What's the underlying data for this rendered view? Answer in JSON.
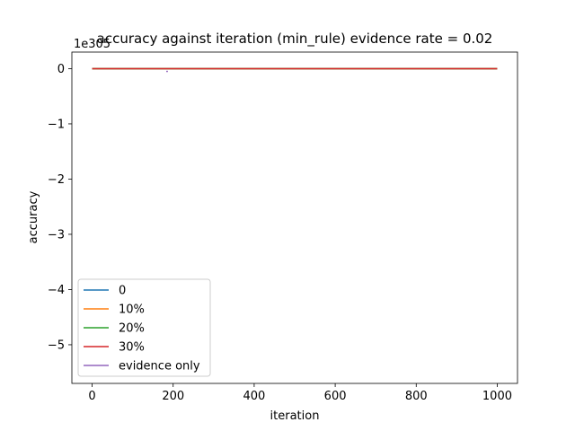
{
  "chart_data": {
    "type": "line",
    "title": "accuracy against iteration (min_rule) evidence rate = 0.02",
    "xlabel": "iteration",
    "ylabel": "accuracy",
    "y_scale_note": "1e305",
    "xlim": [
      -50,
      1050
    ],
    "ylim": [
      -5.7,
      0.3
    ],
    "xticks": [
      0,
      200,
      400,
      600,
      800,
      1000
    ],
    "xtick_labels": [
      "0",
      "200",
      "400",
      "600",
      "800",
      "1000"
    ],
    "yticks": [
      0,
      -1,
      -2,
      -3,
      -4,
      -5
    ],
    "ytick_labels": [
      "0",
      "−1",
      "−2",
      "−3",
      "−4",
      "−5"
    ],
    "grid": false,
    "legend_position": "lower-left",
    "series": [
      {
        "name": "0",
        "color": "#1f77b4",
        "x": [
          0,
          1000
        ],
        "y": [
          0,
          0
        ]
      },
      {
        "name": "10%",
        "color": "#ff7f0e",
        "x": [
          0,
          1000
        ],
        "y": [
          0,
          0
        ]
      },
      {
        "name": "20%",
        "color": "#2ca02c",
        "x": [
          0,
          1000
        ],
        "y": [
          0,
          0
        ]
      },
      {
        "name": "30%",
        "color": "#d62728",
        "x": [
          0,
          1000
        ],
        "y": [
          0,
          0
        ]
      },
      {
        "name": "evidence only",
        "color": "#9467bd",
        "x": [
          183,
          187
        ],
        "y": [
          -0.05,
          -0.05
        ]
      }
    ]
  }
}
